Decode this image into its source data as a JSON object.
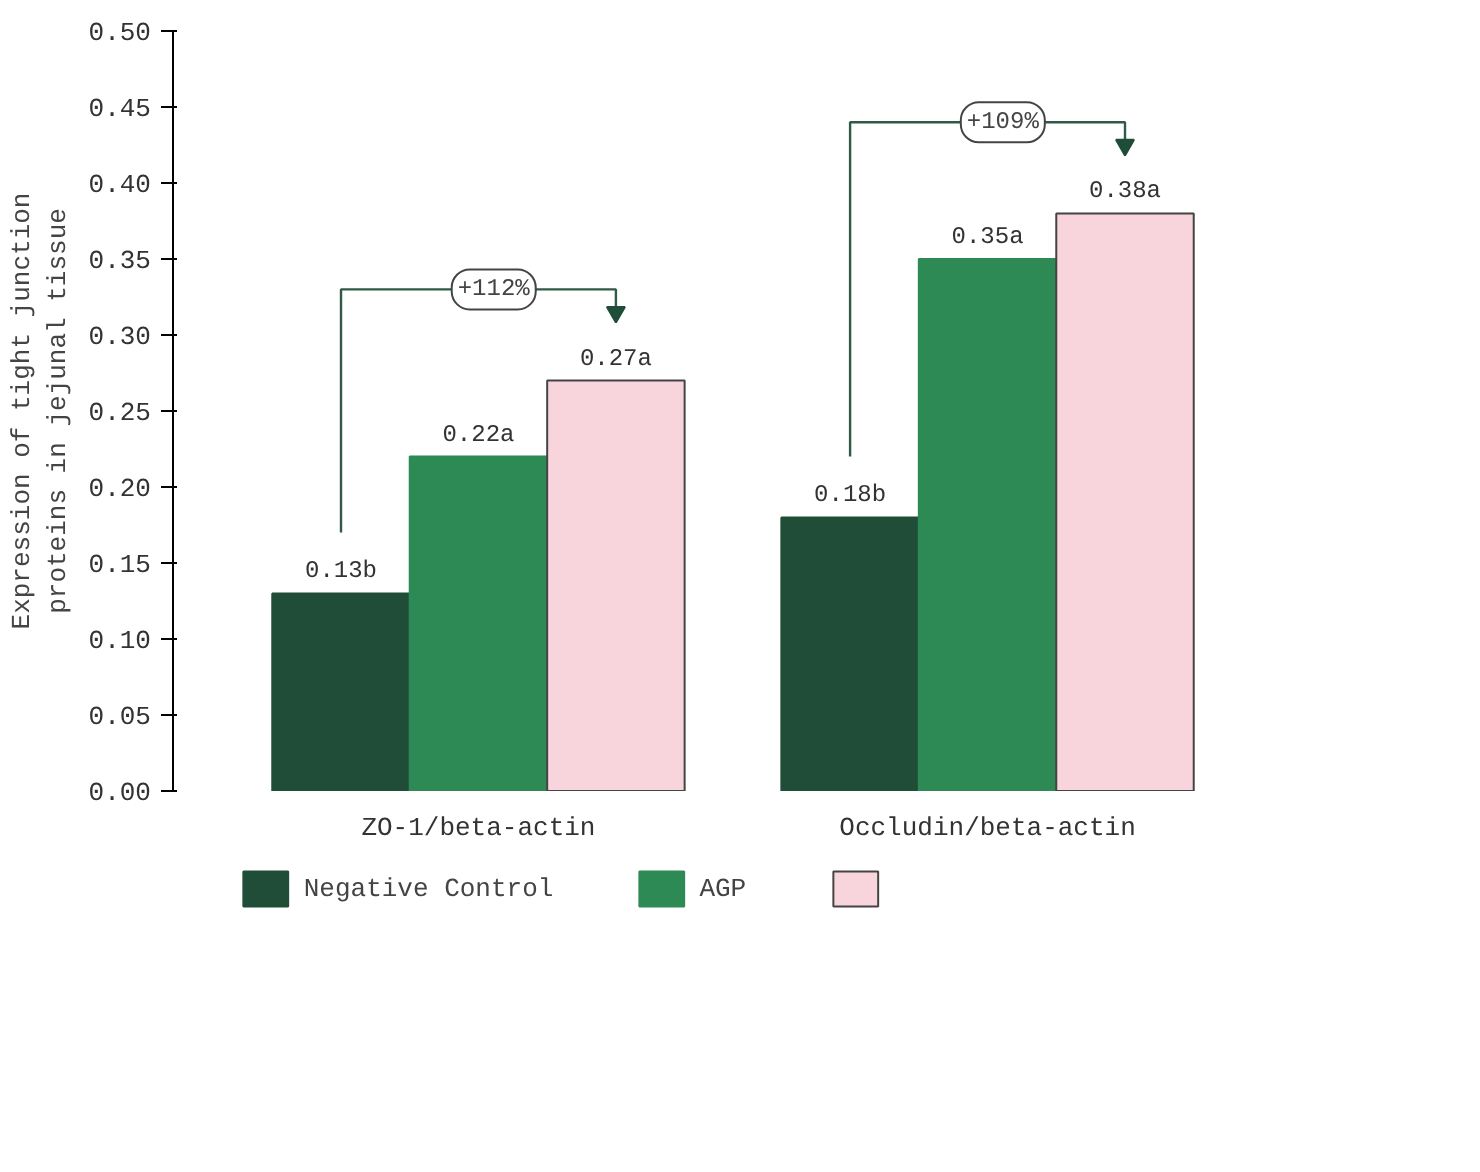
{
  "chart_data": {
    "type": "bar",
    "ylabel": "Expression of tight junction\nproteins in jejunal tissue",
    "categories": [
      "ZO-1/beta-actin",
      "Occludin/beta-actin"
    ],
    "series": [
      {
        "name": "Negative Control",
        "color": "#1f4d37",
        "values": [
          0.13,
          0.18
        ],
        "value_labels": [
          "0.13b",
          "0.18b"
        ]
      },
      {
        "name": "AGP",
        "color": "#2e8a55",
        "values": [
          0.22,
          0.35
        ],
        "value_labels": [
          "0.22a",
          "0.35a"
        ]
      },
      {
        "color": "#f8d5dc",
        "values": [
          0.27,
          0.38
        ],
        "value_labels": [
          "0.27a",
          "0.38a"
        ]
      }
    ],
    "ylim": [
      0,
      0.5
    ],
    "yticks": [
      {
        "value": 0,
        "label": "0.00"
      },
      {
        "value": 0.05,
        "label": "0.05"
      },
      {
        "value": 0.1,
        "label": "0.10"
      },
      {
        "value": 0.15,
        "label": "0.15"
      },
      {
        "value": 0.2,
        "label": "0.20"
      },
      {
        "value": 0.25,
        "label": "0.25"
      },
      {
        "value": 0.3,
        "label": "0.30"
      },
      {
        "value": 0.35,
        "label": "0.35"
      },
      {
        "value": 0.4,
        "label": "0.40"
      },
      {
        "value": 0.45,
        "label": "0.45"
      },
      {
        "value": 0.5,
        "label": "0.50"
      }
    ],
    "annotations": [
      "+112%",
      "+109%"
    ],
    "grid": false,
    "legend": "bottom"
  }
}
